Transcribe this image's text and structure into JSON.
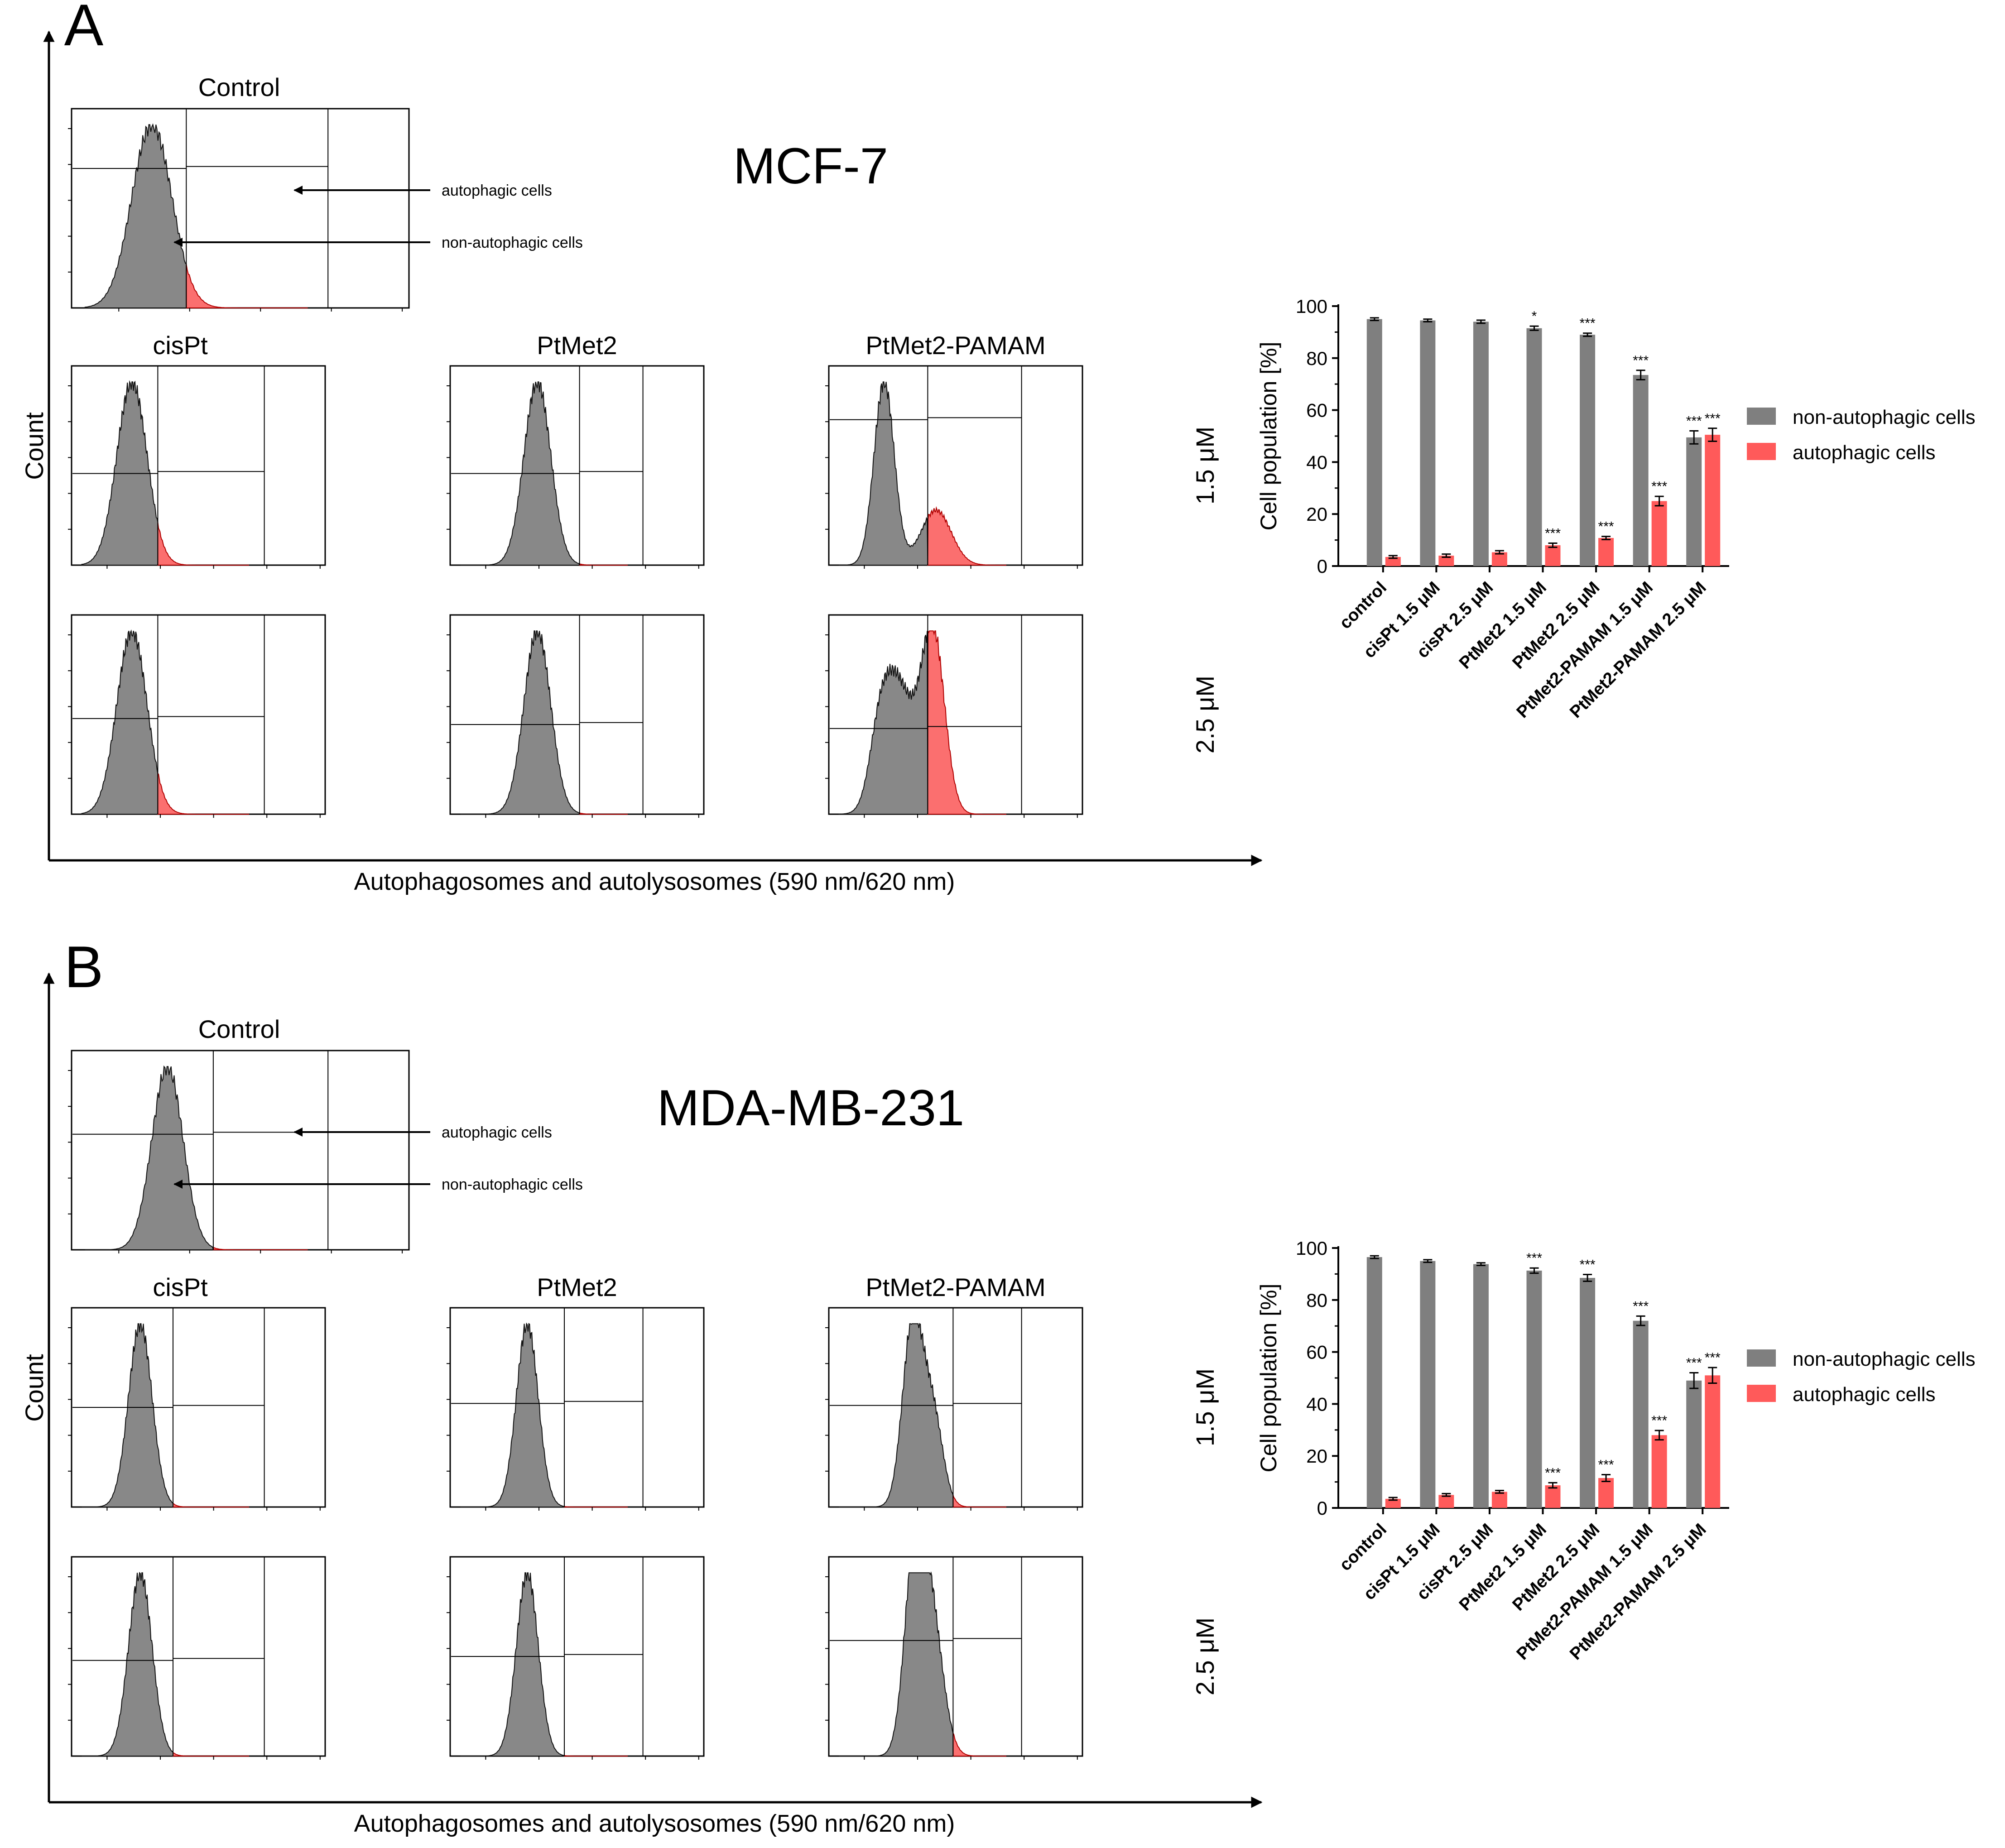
{
  "colors": {
    "gray": "#7f7f7f",
    "red": "#ff5a5a",
    "axis": "#000000",
    "flow_gray": "#888888",
    "flow_red": "#fb6f6f"
  },
  "common": {
    "x_axis_title": "Autophagosomes and autolysosomes (590 nm/620 nm)",
    "y_axis_title": "Count",
    "control_title": "Control",
    "col_titles": [
      "cisPt",
      "PtMet2",
      "PtMet2-PAMAM"
    ],
    "row_labels": [
      "1.5 μM",
      "2.5 μM"
    ],
    "arrow_labels": [
      "autophagic cells",
      "non-autophagic cells"
    ]
  },
  "panels": [
    {
      "letter": "A",
      "cell_line": "MCF-7"
    },
    {
      "letter": "B",
      "cell_line": "MDA-MB-231"
    }
  ],
  "chart_data": [
    {
      "type": "bar",
      "panel": "A",
      "title": "MCF-7",
      "xlabel": "",
      "ylabel": "Cell population [%]",
      "ylim": [
        0,
        100
      ],
      "yticks": [
        0,
        20,
        40,
        60,
        80,
        100
      ],
      "categories": [
        "control",
        "cisPt 1.5 μM",
        "cisPt 2.5 μM",
        "PtMet2 1.5 μM",
        "PtMet2 2.5 μM",
        "PtMet2-PAMAM 1.5 μM",
        "PtMet2-PAMAM 2.5 μM"
      ],
      "legend_position": "right",
      "series": [
        {
          "name": "non-autophagic cells",
          "values": [
            95,
            94.5,
            94,
            91.5,
            89,
            73.5,
            49.5
          ],
          "errors": [
            0.5,
            0.5,
            0.6,
            0.8,
            0.6,
            1.8,
            2.5
          ],
          "significance": [
            "",
            "",
            "",
            "*",
            "***",
            "***",
            "***"
          ]
        },
        {
          "name": "autophagic cells",
          "values": [
            3.5,
            4,
            5.3,
            8,
            10.8,
            25,
            50.5
          ],
          "errors": [
            0.5,
            0.6,
            0.6,
            0.8,
            0.6,
            1.8,
            2.5
          ],
          "significance": [
            "",
            "",
            "",
            "***",
            "***",
            "***",
            "***"
          ]
        }
      ]
    },
    {
      "type": "bar",
      "panel": "B",
      "title": "MDA-MB-231",
      "xlabel": "",
      "ylabel": "Cell population [%]",
      "ylim": [
        0,
        100
      ],
      "yticks": [
        0,
        20,
        40,
        60,
        80,
        100
      ],
      "categories": [
        "control",
        "cisPt 1.5 μM",
        "cisPt 2.5 μM",
        "PtMet2 1.5 μM",
        "PtMet2 2.5 μM",
        "PtMet2-PAMAM 1.5 μM",
        "PtMet2-PAMAM 2.5 μM"
      ],
      "legend_position": "right",
      "series": [
        {
          "name": "non-autophagic cells",
          "values": [
            96.5,
            95,
            93.8,
            91.3,
            88.5,
            72,
            49
          ],
          "errors": [
            0.5,
            0.5,
            0.5,
            1,
            1.3,
            1.8,
            3
          ],
          "significance": [
            "",
            "",
            "",
            "***",
            "***",
            "***",
            "***"
          ]
        },
        {
          "name": "autophagic cells",
          "values": [
            3.5,
            5,
            6.2,
            8.7,
            11.5,
            28,
            51
          ],
          "errors": [
            0.5,
            0.5,
            0.5,
            1,
            1.3,
            1.8,
            3
          ],
          "significance": [
            "",
            "",
            "",
            "***",
            "***",
            "***",
            "***"
          ]
        }
      ]
    }
  ]
}
